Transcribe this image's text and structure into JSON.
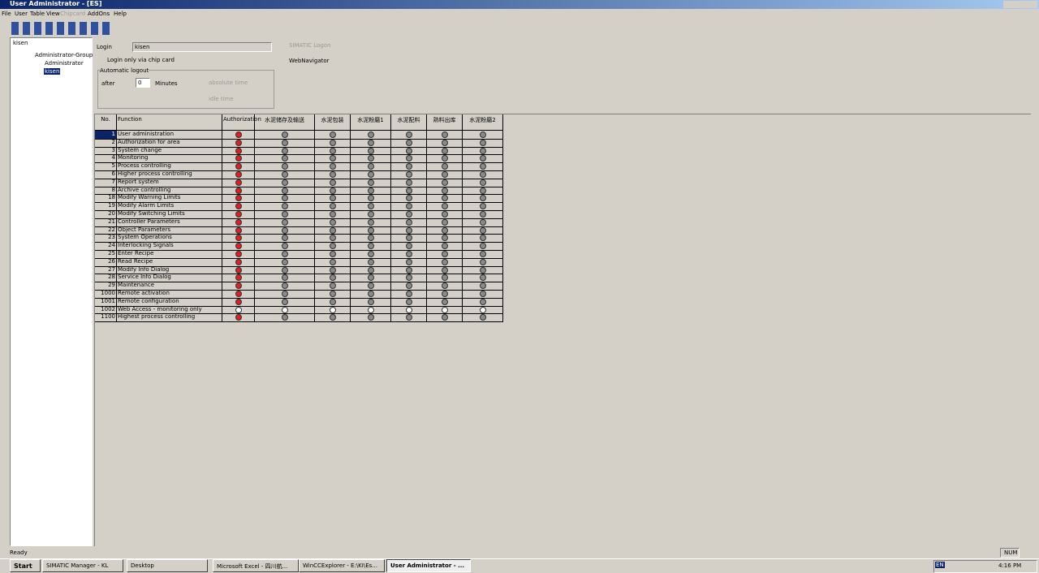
{
  "window": {
    "title": "User Administrator - [ES]"
  },
  "menu": [
    "File",
    "User",
    "Table",
    "View",
    "Chipcard",
    "AddOns",
    "Help"
  ],
  "tree": {
    "header": "kisen",
    "group": "Administrator-Group",
    "users": [
      "Administrator",
      "kisen"
    ]
  },
  "form": {
    "login_label": "Login",
    "login_value": "kisen",
    "simatic_logon": "SIMATIC Logon",
    "chipcard": "Login only via chip card",
    "webnavigator": "WebNavigator",
    "auto_logout": "Automatic logout",
    "after": "after",
    "after_value": "0",
    "minutes": "Minutes",
    "absolute": "absolute time",
    "idle": "idle time"
  },
  "table": {
    "headers": [
      "No.",
      "Function",
      "Authorization",
      "水泥储存及输送",
      "水泥包装",
      "水泥粉磨1",
      "水泥配料",
      "熟料出库",
      "水泥粉磨2"
    ],
    "rows": [
      [
        1,
        "User administration"
      ],
      [
        2,
        "Authorization for area"
      ],
      [
        3,
        "System change"
      ],
      [
        4,
        "Monitoring"
      ],
      [
        5,
        "Process controlling"
      ],
      [
        6,
        "Higher process controlling"
      ],
      [
        7,
        "Report system"
      ],
      [
        8,
        "Archive controlling"
      ],
      [
        18,
        "Modify Warning Limits"
      ],
      [
        19,
        "Modify Alarm Limits"
      ],
      [
        20,
        "Modify Switching Limits"
      ],
      [
        21,
        "Controller Parameters"
      ],
      [
        22,
        "Object Parameters"
      ],
      [
        23,
        "System Operations"
      ],
      [
        24,
        "Interlocking Signals"
      ],
      [
        25,
        "Enter Recipe"
      ],
      [
        26,
        "Read Recipe"
      ],
      [
        27,
        "Modify Info Dialog"
      ],
      [
        28,
        "Service Info Dialog"
      ],
      [
        29,
        "Maintenance"
      ],
      [
        1000,
        "Remote activation"
      ],
      [
        1001,
        "Remote configuration"
      ],
      [
        1002,
        "Web Access - monitoring only"
      ],
      [
        1100,
        "Highest process controlling"
      ]
    ]
  },
  "status": {
    "left": "Ready",
    "right": "NUM"
  },
  "taskbar": {
    "start": "Start",
    "items": [
      "SIMATIC Manager - KL",
      "Desktop",
      "Microsoft Excel - 四川航...",
      "WinCCExplorer - E:\\KI\\Es...",
      "User Administrator - ..."
    ],
    "lang": "EN",
    "clock": "4:16 PM"
  }
}
